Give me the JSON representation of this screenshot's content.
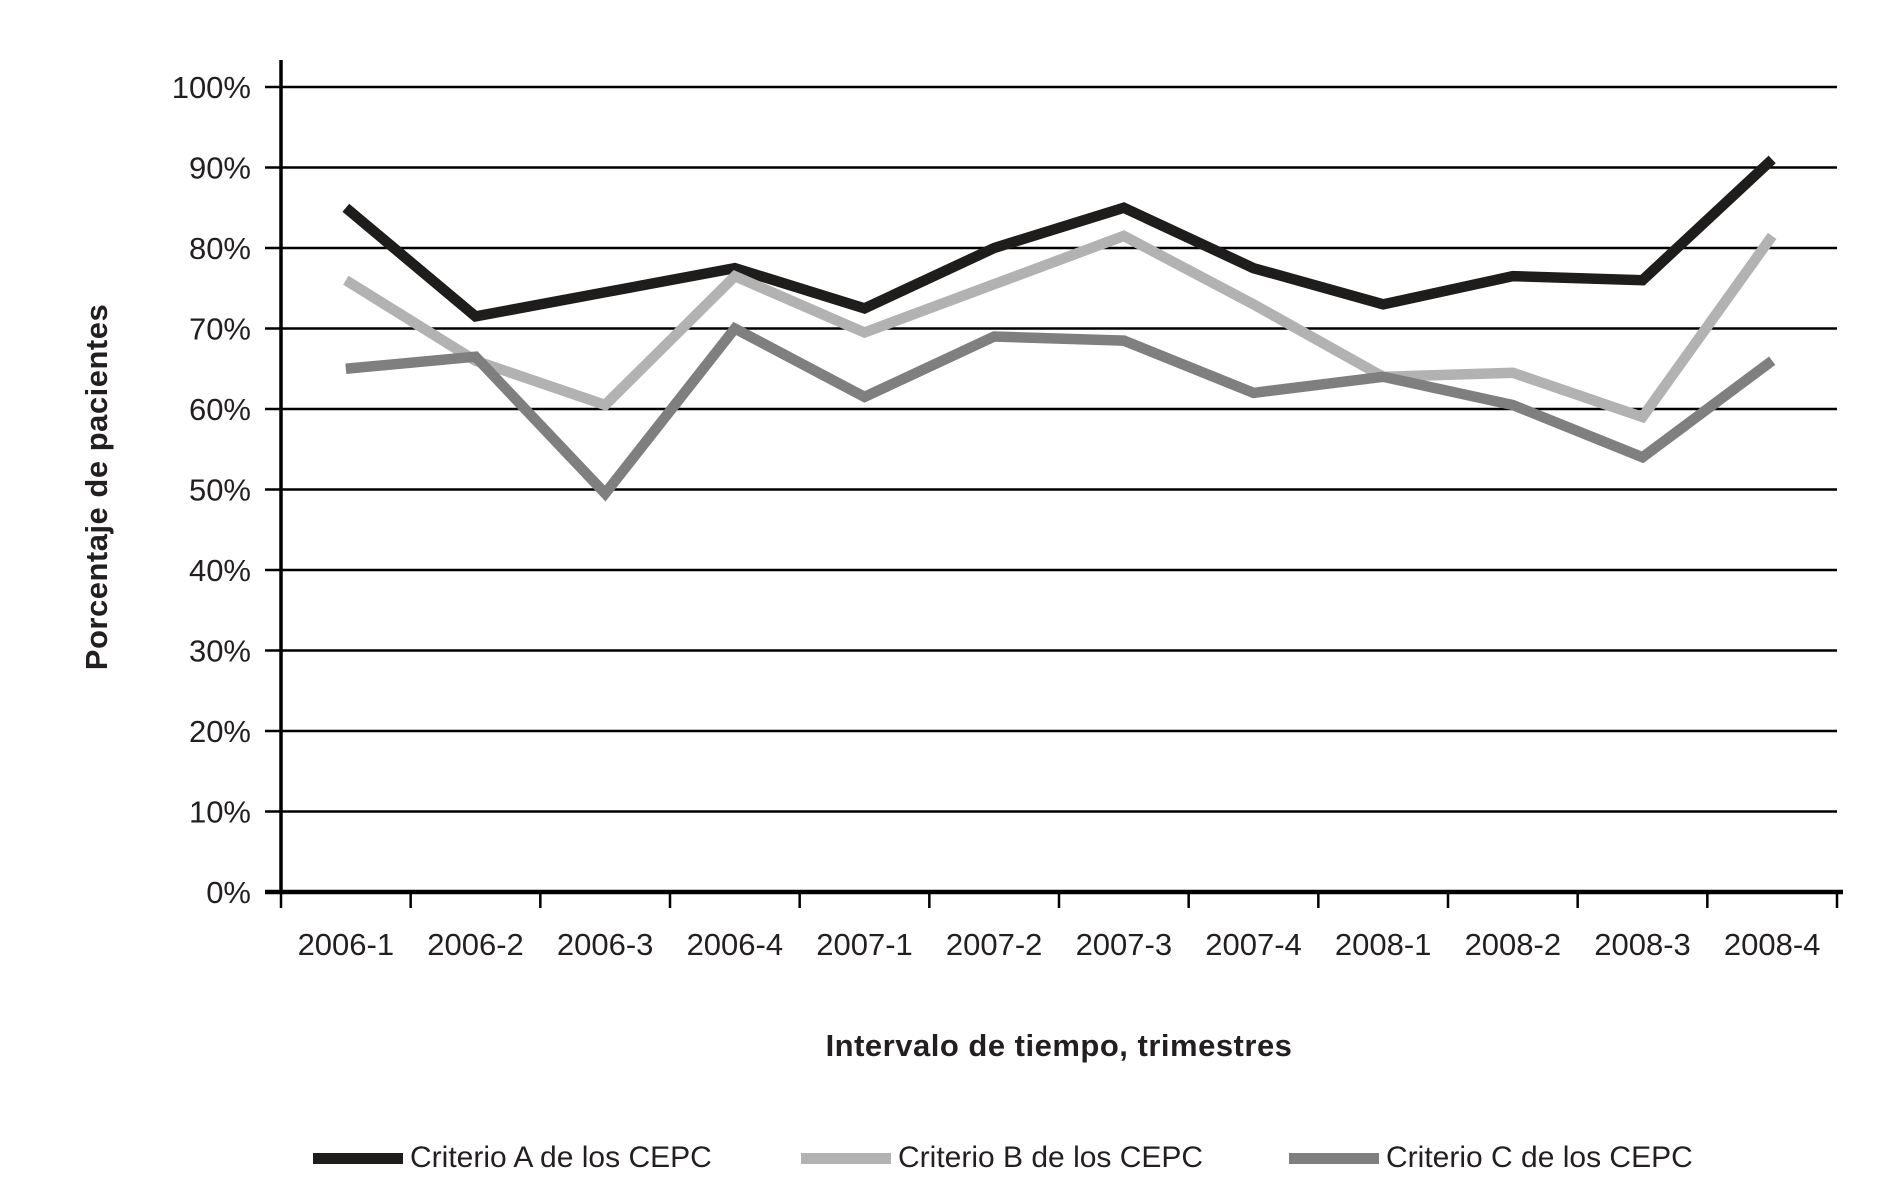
{
  "chart_data": {
    "type": "line",
    "title": "",
    "xlabel": "Intervalo de tiempo, trimestres",
    "ylabel": "Porcentaje de pacientes",
    "categories": [
      "2006-1",
      "2006-2",
      "2006-3",
      "2006-4",
      "2007-1",
      "2007-2",
      "2007-3",
      "2007-4",
      "2008-1",
      "2008-2",
      "2008-3",
      "2008-4"
    ],
    "series": [
      {
        "name": "Criterio A de los CEPC",
        "color": "#1f1c1c",
        "values": [
          85,
          71.5,
          74.5,
          77.5,
          72.5,
          80,
          85,
          77.5,
          73,
          76.5,
          76,
          91
        ]
      },
      {
        "name": "Criterio B de los CEPC",
        "color": "#b2b2b2",
        "values": [
          76,
          66,
          60.5,
          76.5,
          69.5,
          75.5,
          81.5,
          73,
          64,
          64.5,
          59,
          81.5
        ]
      },
      {
        "name": "Criterio C de los CEPC",
        "color": "#7f7f7f",
        "values": [
          65,
          66.5,
          49.5,
          70,
          61.5,
          69,
          68.5,
          62,
          64,
          60.5,
          54,
          66
        ]
      }
    ],
    "ylim": [
      0,
      100
    ],
    "y_tick_step": 10,
    "y_tick_labels": [
      "0%",
      "10%",
      "20%",
      "30%",
      "40%",
      "50%",
      "60%",
      "70%",
      "80%",
      "90%",
      "100%"
    ],
    "grid": "horizontal",
    "legend_position": "bottom",
    "axis_color": "#000000",
    "text_color": "#231f20"
  }
}
